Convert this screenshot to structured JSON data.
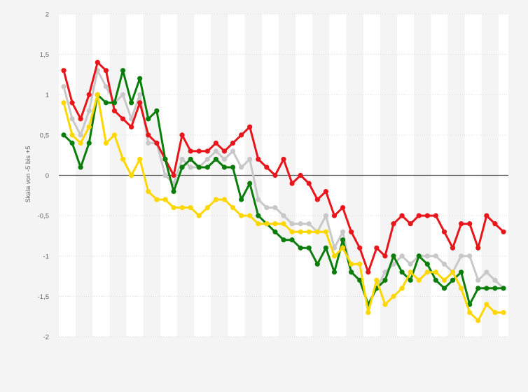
{
  "chart_data": {
    "type": "line",
    "title": "",
    "xlabel": "",
    "ylabel": "Skala von -5 bis +5",
    "ylim": [
      -2,
      2
    ],
    "y_ticks": [
      "2",
      "1,5",
      "1",
      "0,5",
      "0",
      "-0,5",
      "-1",
      "-1,5",
      "-2"
    ],
    "grid": true,
    "legend": "none",
    "colors": {
      "background": "#f4f4f4",
      "plot_band_light": "#ffffff",
      "plot_band_dark": "#f4f4f4",
      "zero_line": "#555555",
      "gray": "#c8c8c8",
      "red": "#e8151b",
      "green": "#0b7d0b",
      "yellow": "#ffd700"
    },
    "series": [
      {
        "color": "gray",
        "values": [
          1.1,
          0.7,
          0.5,
          0.8,
          1.3,
          1.1,
          0.9,
          1.0,
          0.7,
          1.0,
          0.4,
          0.4,
          0.0,
          -0.1,
          0.2,
          0.1,
          0.1,
          0.2,
          0.3,
          0.2,
          0.3,
          0.1,
          0.2,
          -0.3,
          -0.4,
          -0.4,
          -0.5,
          -0.6,
          -0.6,
          -0.6,
          -0.7,
          -0.5,
          -0.9,
          -0.7,
          -1.2,
          -1.3,
          -1.6,
          -1.4,
          -1.2,
          -1.1,
          -1.0,
          -1.1,
          -1.0,
          -1.0,
          -1.0,
          -1.1,
          -1.2,
          -1.0,
          -1.0,
          -1.3,
          -1.2,
          -1.3,
          -1.4
        ]
      },
      {
        "color": "red",
        "values": [
          1.3,
          0.9,
          0.7,
          1.0,
          1.4,
          1.3,
          0.8,
          0.7,
          0.6,
          0.9,
          0.5,
          0.4,
          0.2,
          0.0,
          0.5,
          0.3,
          0.3,
          0.3,
          0.4,
          0.3,
          0.4,
          0.5,
          0.6,
          0.2,
          0.1,
          0.0,
          0.2,
          -0.1,
          0.0,
          -0.1,
          -0.3,
          -0.2,
          -0.5,
          -0.4,
          -0.7,
          -0.9,
          -1.2,
          -0.9,
          -1.0,
          -0.6,
          -0.5,
          -0.6,
          -0.5,
          -0.5,
          -0.5,
          -0.7,
          -0.9,
          -0.6,
          -0.6,
          -0.9,
          -0.5,
          -0.6,
          -0.7
        ]
      },
      {
        "color": "green",
        "values": [
          0.5,
          0.4,
          0.1,
          0.4,
          1.0,
          0.9,
          0.9,
          1.3,
          0.9,
          1.2,
          0.7,
          0.8,
          0.2,
          -0.2,
          0.1,
          0.2,
          0.1,
          0.1,
          0.2,
          0.1,
          0.1,
          -0.3,
          -0.1,
          -0.5,
          -0.6,
          -0.7,
          -0.8,
          -0.8,
          -0.9,
          -0.9,
          -1.1,
          -0.9,
          -1.2,
          -0.8,
          -1.2,
          -1.3,
          -1.6,
          -1.4,
          -1.3,
          -1.0,
          -1.2,
          -1.3,
          -1.0,
          -1.1,
          -1.3,
          -1.4,
          -1.3,
          -1.2,
          -1.6,
          -1.4,
          -1.4,
          -1.4,
          -1.4
        ]
      },
      {
        "color": "yellow",
        "values": [
          0.9,
          0.5,
          0.4,
          0.6,
          1.0,
          0.4,
          0.5,
          0.2,
          0.0,
          0.2,
          -0.2,
          -0.3,
          -0.3,
          -0.4,
          -0.4,
          -0.4,
          -0.5,
          -0.4,
          -0.3,
          -0.3,
          -0.4,
          -0.5,
          -0.5,
          -0.6,
          -0.6,
          -0.6,
          -0.6,
          -0.7,
          -0.7,
          -0.7,
          -0.7,
          -0.7,
          -1.0,
          -0.9,
          -1.1,
          -1.1,
          -1.7,
          -1.3,
          -1.6,
          -1.5,
          -1.4,
          -1.2,
          -1.3,
          -1.2,
          -1.2,
          -1.3,
          -1.2,
          -1.4,
          -1.7,
          -1.8,
          -1.6,
          -1.7,
          -1.7
        ]
      }
    ]
  }
}
